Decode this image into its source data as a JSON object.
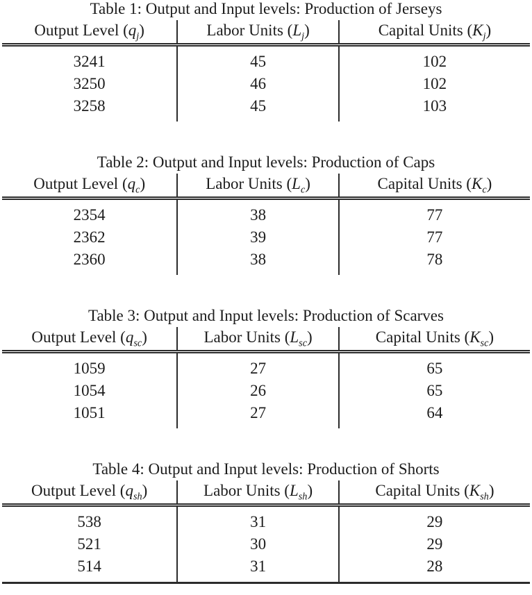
{
  "page": {
    "background": "#ffffff",
    "text_color": "#1c1c1c",
    "rule_color": "#2b2b2b"
  },
  "tables": [
    {
      "caption": "Table 1: Output and Input levels: Production of Jerseys",
      "headers": [
        {
          "text": "Output Level",
          "symbol": "q",
          "subscript": "j"
        },
        {
          "text": "Labor Units",
          "symbol": "L",
          "subscript": "j"
        },
        {
          "text": "Capital Units",
          "symbol": "K",
          "subscript": "j"
        }
      ],
      "rows": [
        [
          "3241",
          "45",
          "102"
        ],
        [
          "3250",
          "46",
          "102"
        ],
        [
          "3258",
          "45",
          "103"
        ]
      ],
      "bottom_rule": false
    },
    {
      "caption": "Table 2: Output and Input levels: Production of Caps",
      "headers": [
        {
          "text": "Output Level",
          "symbol": "q",
          "subscript": "c"
        },
        {
          "text": "Labor Units",
          "symbol": "L",
          "subscript": "c"
        },
        {
          "text": "Capital Units",
          "symbol": "K",
          "subscript": "c"
        }
      ],
      "rows": [
        [
          "2354",
          "38",
          "77"
        ],
        [
          "2362",
          "39",
          "77"
        ],
        [
          "2360",
          "38",
          "78"
        ]
      ],
      "bottom_rule": false
    },
    {
      "caption": "Table 3: Output and Input levels: Production of Scarves",
      "headers": [
        {
          "text": "Output Level",
          "symbol": "q",
          "subscript": "sc"
        },
        {
          "text": "Labor Units",
          "symbol": "L",
          "subscript": "sc"
        },
        {
          "text": "Capital Units",
          "symbol": "K",
          "subscript": "sc"
        }
      ],
      "rows": [
        [
          "1059",
          "27",
          "65"
        ],
        [
          "1054",
          "26",
          "65"
        ],
        [
          "1051",
          "27",
          "64"
        ]
      ],
      "bottom_rule": false
    },
    {
      "caption": "Table 4: Output and Input levels: Production of Shorts",
      "headers": [
        {
          "text": "Output Level",
          "symbol": "q",
          "subscript": "sh"
        },
        {
          "text": "Labor Units",
          "symbol": "L",
          "subscript": "sh"
        },
        {
          "text": "Capital Units",
          "symbol": "K",
          "subscript": "sh"
        }
      ],
      "rows": [
        [
          "538",
          "31",
          "29"
        ],
        [
          "521",
          "30",
          "29"
        ],
        [
          "514",
          "31",
          "28"
        ]
      ],
      "bottom_rule": true
    }
  ]
}
